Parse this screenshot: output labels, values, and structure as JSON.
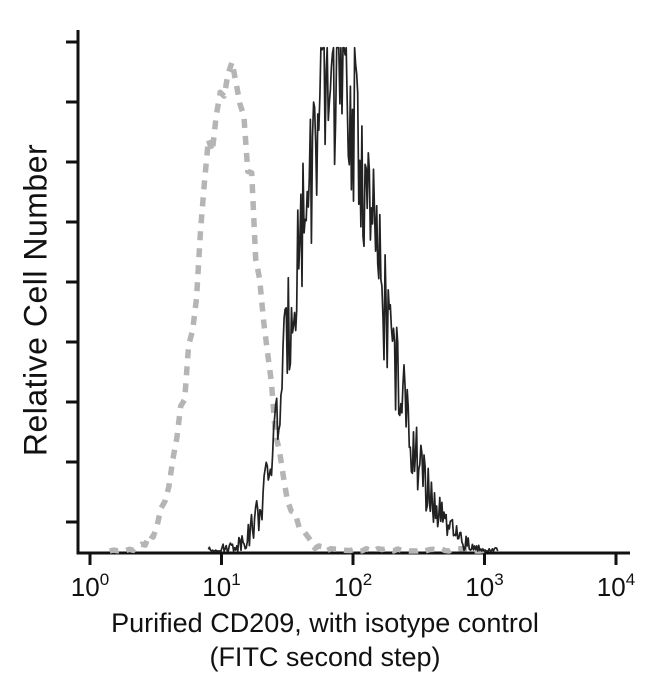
{
  "figure": {
    "title": "",
    "ylabel": "Relative Cell Number",
    "xlabel_line1": "Purified CD209, with isotype control",
    "xlabel_line2": "(FITC second step)"
  },
  "chart_data": {
    "type": "line",
    "subtype": "flow-cytometry-overlay-histogram",
    "title": "",
    "xlabel": "Purified CD209, with isotype control (FITC second step)",
    "ylabel": "Relative Cell Number",
    "legend": "none",
    "grid": false,
    "x_axis": {
      "scale": "log10",
      "range": [
        1,
        10000
      ],
      "ticks": [
        {
          "base": "10",
          "exp": "0"
        },
        {
          "base": "10",
          "exp": "1"
        },
        {
          "base": "10",
          "exp": "2"
        },
        {
          "base": "10",
          "exp": "3"
        },
        {
          "base": "10",
          "exp": "4"
        }
      ]
    },
    "y_axis": {
      "range": [
        0,
        1
      ],
      "tick_count": 9,
      "tick_labels": "none"
    },
    "series": [
      {
        "id": "isotype-control-curve",
        "name": "Isotype control (dashed gray histogram)",
        "line_style": "dashed",
        "color": "#b5b5b5",
        "stroke_width": 5.5,
        "dash": [
          9,
          8
        ],
        "noise_amp": 0.07,
        "seed": 7,
        "sample_step": 0.03,
        "peak_logx": 1.05,
        "points_logx_relheight": [
          [
            0.15,
            0.001
          ],
          [
            0.3,
            0.004
          ],
          [
            0.4,
            0.012
          ],
          [
            0.5,
            0.043
          ],
          [
            0.6,
            0.12
          ],
          [
            0.7,
            0.27
          ],
          [
            0.8,
            0.51
          ],
          [
            0.9,
            0.77
          ],
          [
            1.0,
            0.945
          ],
          [
            1.05,
            0.97
          ],
          [
            1.1,
            0.945
          ],
          [
            1.2,
            0.77
          ],
          [
            1.3,
            0.51
          ],
          [
            1.4,
            0.27
          ],
          [
            1.5,
            0.12
          ],
          [
            1.6,
            0.043
          ],
          [
            1.7,
            0.012
          ],
          [
            1.8,
            0.005
          ],
          [
            2.0,
            0.004
          ],
          [
            2.4,
            0.004
          ],
          [
            2.8,
            0.004
          ],
          [
            3.0,
            0.003
          ]
        ]
      },
      {
        "id": "cd209-curve",
        "name": "Purified CD209 with FITC second step (solid black histogram)",
        "line_style": "solid",
        "color": "#222222",
        "stroke_width": 1.7,
        "dash": null,
        "noise_amp": 0.18,
        "seed": 13,
        "sample_step": 0.008,
        "peak_logx": 1.85,
        "points_logx_relheight": [
          [
            0.9,
            0.003
          ],
          [
            1.0,
            0.006
          ],
          [
            1.1,
            0.012
          ],
          [
            1.2,
            0.03
          ],
          [
            1.3,
            0.09
          ],
          [
            1.35,
            0.14
          ],
          [
            1.4,
            0.22
          ],
          [
            1.45,
            0.3
          ],
          [
            1.5,
            0.42
          ],
          [
            1.55,
            0.52
          ],
          [
            1.6,
            0.62
          ],
          [
            1.65,
            0.7
          ],
          [
            1.7,
            0.78
          ],
          [
            1.75,
            0.85
          ],
          [
            1.8,
            0.9
          ],
          [
            1.85,
            0.93
          ],
          [
            1.9,
            0.92
          ],
          [
            1.95,
            0.89
          ],
          [
            2.0,
            0.84
          ],
          [
            2.05,
            0.78
          ],
          [
            2.1,
            0.7
          ],
          [
            2.15,
            0.63
          ],
          [
            2.2,
            0.55
          ],
          [
            2.25,
            0.47
          ],
          [
            2.3,
            0.4
          ],
          [
            2.35,
            0.33
          ],
          [
            2.4,
            0.27
          ],
          [
            2.45,
            0.22
          ],
          [
            2.5,
            0.17
          ],
          [
            2.55,
            0.13
          ],
          [
            2.6,
            0.1
          ],
          [
            2.65,
            0.075
          ],
          [
            2.7,
            0.055
          ],
          [
            2.75,
            0.04
          ],
          [
            2.8,
            0.028
          ],
          [
            2.85,
            0.018
          ],
          [
            2.9,
            0.011
          ],
          [
            2.95,
            0.006
          ],
          [
            3.0,
            0.004
          ],
          [
            3.1,
            0.002
          ]
        ]
      }
    ]
  }
}
